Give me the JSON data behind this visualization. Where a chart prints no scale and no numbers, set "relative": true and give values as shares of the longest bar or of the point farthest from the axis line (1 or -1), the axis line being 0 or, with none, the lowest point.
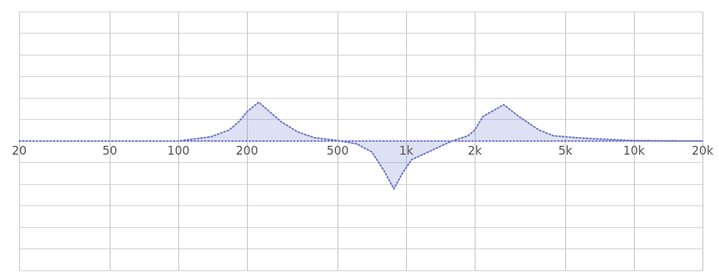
{
  "chart_data": {
    "type": "area",
    "relative": true,
    "log": "x",
    "grid": true,
    "line_style": "dotted",
    "marker": "none",
    "xlim": [
      20,
      20000
    ],
    "xticks": [
      20,
      50,
      100,
      200,
      500,
      {
        "value": 1000,
        "label": "1k"
      },
      {
        "value": 2000,
        "label": "2k"
      },
      {
        "value": 5000,
        "label": "5k"
      },
      {
        "value": 10000,
        "label": "10k"
      },
      {
        "value": 20000,
        "label": "20k"
      }
    ],
    "series": [
      {
        "color": "#6b74c8",
        "x": [
          20,
          50,
          100,
          139,
          167,
          184,
          200,
          225,
          249,
          283,
          334,
          395,
          500,
          607,
          707,
          801,
          883,
          966,
          1057,
          1197,
          1444,
          1591,
          1866,
          2000,
          2169,
          2680,
          3128,
          3830,
          4425,
          5580,
          7170,
          10000,
          20000
        ],
        "values": [
          0,
          0,
          0,
          0.09,
          0.23,
          0.4,
          0.61,
          0.81,
          0.63,
          0.4,
          0.19,
          0.07,
          0.01,
          -0.06,
          -0.23,
          -0.63,
          -1,
          -0.66,
          -0.39,
          -0.27,
          -0.09,
          0,
          0.11,
          0.23,
          0.51,
          0.76,
          0.51,
          0.23,
          0.11,
          0.07,
          0.04,
          0.01,
          0
        ]
      }
    ]
  }
}
